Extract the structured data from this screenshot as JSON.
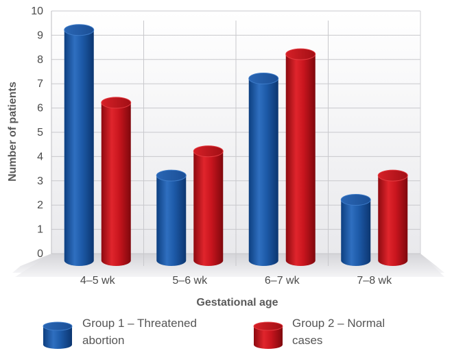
{
  "chart_data": {
    "type": "bar",
    "categories": [
      "4–5 wk",
      "5–6 wk",
      "6–7 wk",
      "7–8 wk"
    ],
    "series": [
      {
        "name": "Group 1 – Threatened abortion",
        "legend_lines": [
          "Group 1 – Threatened",
          "abortion"
        ],
        "values": [
          9.5,
          3.5,
          7.5,
          2.5
        ],
        "color": "#1f5aa6"
      },
      {
        "name": "Group 2 – Normal cases",
        "legend_lines": [
          "Group 2 – Normal",
          "cases"
        ],
        "values": [
          6.5,
          4.5,
          8.5,
          3.5
        ],
        "color": "#c9151e"
      }
    ],
    "xlabel": "Gestational age",
    "ylabel": "Number of patients",
    "ylim": [
      0,
      10
    ],
    "yticks": [
      "0",
      "1",
      "2",
      "3",
      "4",
      "5",
      "6",
      "7",
      "8",
      "9",
      "10"
    ],
    "grid": true,
    "legend_position": "bottom",
    "style": "3d-cylinder"
  }
}
